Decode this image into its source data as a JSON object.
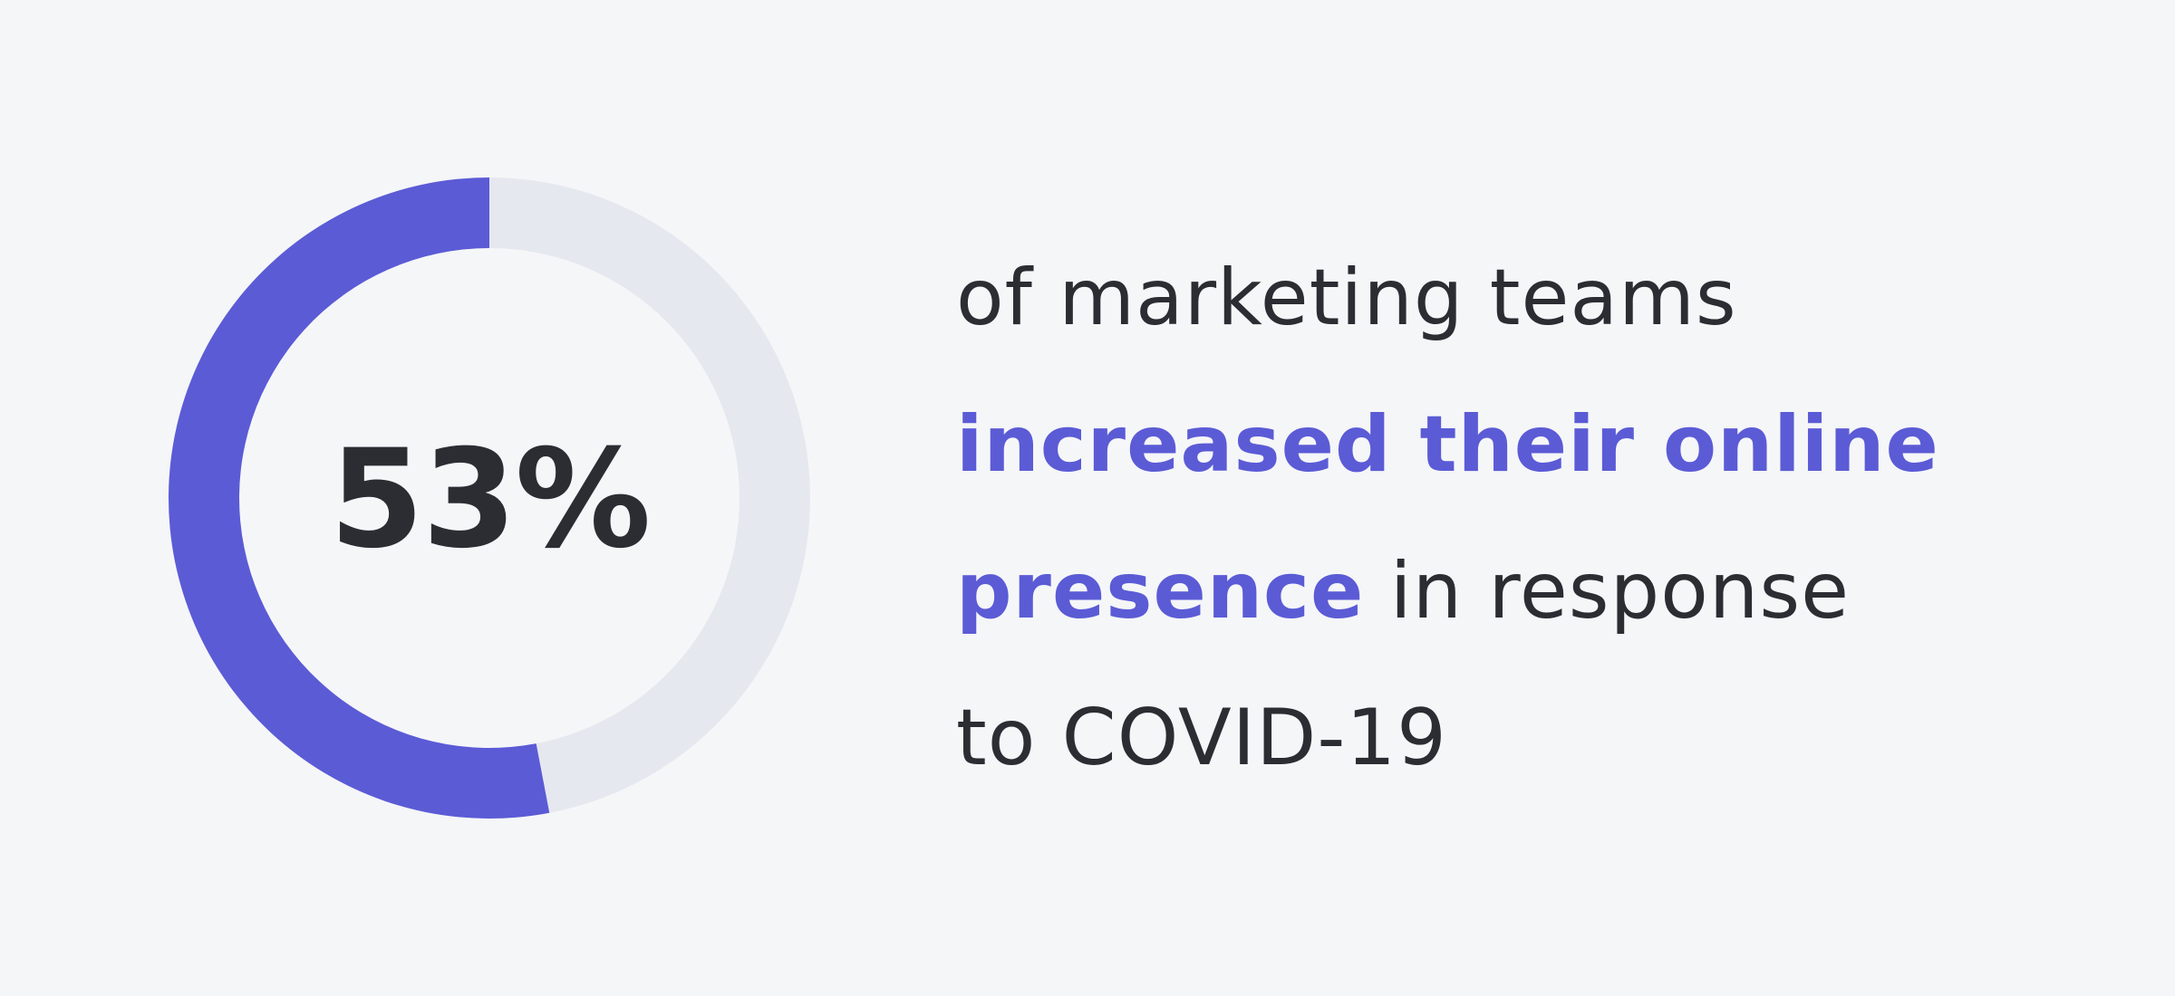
{
  "chart_data": {
    "type": "pie",
    "donut": true,
    "value_label": "53%",
    "slices": [
      {
        "value": 53,
        "color": "#5b5bd6"
      },
      {
        "value": 47,
        "color": "#e6e8ef"
      }
    ]
  },
  "caption": {
    "line1": "of marketing teams",
    "line2_highlight": "increased their online",
    "line3_highlight": "presence",
    "line3_rest": " in response",
    "line4": "to COVID-19"
  },
  "colors": {
    "background": "#f5f6f8",
    "accent": "#5b5bd6",
    "track": "#e6e8ef",
    "text": "#2b2d33"
  }
}
